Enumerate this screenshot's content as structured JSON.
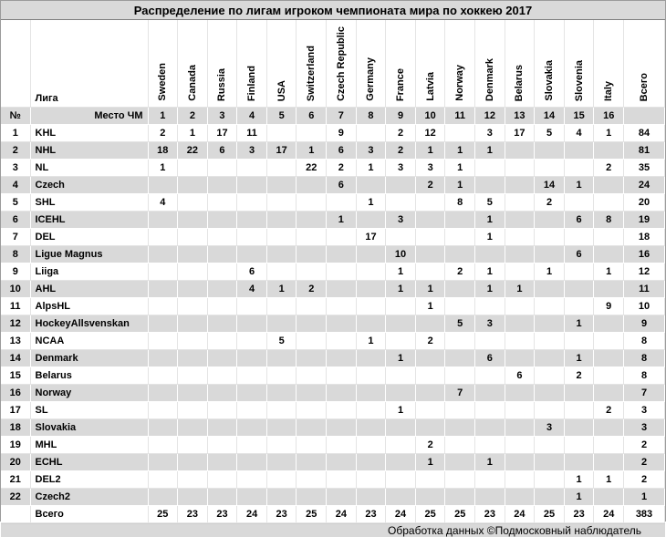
{
  "title": "Распределение по лигам игроком чемпионата мира по хоккею 2017",
  "header": {
    "num_label": "№",
    "league_label": "Лига",
    "place_label": "Место ЧМ",
    "countries": [
      "Sweden",
      "Canada",
      "Russia",
      "Finland",
      "USA",
      "Switzerland",
      "Czech Republic",
      "Germany",
      "France",
      "Latvia",
      "Norway",
      "Denmark",
      "Belarus",
      "Slovakia",
      "Slovenia",
      "Italy"
    ],
    "total_label": "Всего",
    "places": [
      "1",
      "2",
      "3",
      "4",
      "5",
      "6",
      "7",
      "8",
      "9",
      "10",
      "11",
      "12",
      "13",
      "14",
      "15",
      "16"
    ]
  },
  "rows": [
    {
      "num": "1",
      "league": "KHL",
      "values": [
        "2",
        "1",
        "17",
        "11",
        "",
        "",
        "9",
        "",
        "2",
        "12",
        "",
        "3",
        "17",
        "5",
        "4",
        "1"
      ],
      "total": "84"
    },
    {
      "num": "2",
      "league": "NHL",
      "values": [
        "18",
        "22",
        "6",
        "3",
        "17",
        "1",
        "6",
        "3",
        "2",
        "1",
        "1",
        "1",
        "",
        "",
        "",
        ""
      ],
      "total": "81"
    },
    {
      "num": "3",
      "league": "NL",
      "values": [
        "1",
        "",
        "",
        "",
        "",
        "22",
        "2",
        "1",
        "3",
        "3",
        "1",
        "",
        "",
        "",
        "",
        "2"
      ],
      "total": "35"
    },
    {
      "num": "4",
      "league": "Czech",
      "values": [
        "",
        "",
        "",
        "",
        "",
        "",
        "6",
        "",
        "",
        "2",
        "1",
        "",
        "",
        "14",
        "1",
        ""
      ],
      "total": "24"
    },
    {
      "num": "5",
      "league": "SHL",
      "values": [
        "4",
        "",
        "",
        "",
        "",
        "",
        "",
        "1",
        "",
        "",
        "8",
        "5",
        "",
        "2",
        "",
        ""
      ],
      "total": "20"
    },
    {
      "num": "6",
      "league": "ICEHL",
      "values": [
        "",
        "",
        "",
        "",
        "",
        "",
        "1",
        "",
        "3",
        "",
        "",
        "1",
        "",
        "",
        "6",
        "8"
      ],
      "total": "19"
    },
    {
      "num": "7",
      "league": "DEL",
      "values": [
        "",
        "",
        "",
        "",
        "",
        "",
        "",
        "17",
        "",
        "",
        "",
        "1",
        "",
        "",
        "",
        ""
      ],
      "total": "18"
    },
    {
      "num": "8",
      "league": "Ligue Magnus",
      "values": [
        "",
        "",
        "",
        "",
        "",
        "",
        "",
        "",
        "10",
        "",
        "",
        "",
        "",
        "",
        "6",
        ""
      ],
      "total": "16"
    },
    {
      "num": "9",
      "league": "Liiga",
      "values": [
        "",
        "",
        "",
        "6",
        "",
        "",
        "",
        "",
        "1",
        "",
        "2",
        "1",
        "",
        "1",
        "",
        "1"
      ],
      "total": "12"
    },
    {
      "num": "10",
      "league": "AHL",
      "values": [
        "",
        "",
        "",
        "4",
        "1",
        "2",
        "",
        "",
        "1",
        "1",
        "",
        "1",
        "1",
        "",
        "",
        ""
      ],
      "total": "11"
    },
    {
      "num": "11",
      "league": "AlpsHL",
      "values": [
        "",
        "",
        "",
        "",
        "",
        "",
        "",
        "",
        "",
        "1",
        "",
        "",
        "",
        "",
        "",
        "9"
      ],
      "total": "10"
    },
    {
      "num": "12",
      "league": "HockeyAllsvenskan",
      "values": [
        "",
        "",
        "",
        "",
        "",
        "",
        "",
        "",
        "",
        "",
        "5",
        "3",
        "",
        "",
        "1",
        ""
      ],
      "total": "9"
    },
    {
      "num": "13",
      "league": "NCAA",
      "values": [
        "",
        "",
        "",
        "",
        "5",
        "",
        "",
        "1",
        "",
        "2",
        "",
        "",
        "",
        "",
        "",
        ""
      ],
      "total": "8"
    },
    {
      "num": "14",
      "league": "Denmark",
      "values": [
        "",
        "",
        "",
        "",
        "",
        "",
        "",
        "",
        "1",
        "",
        "",
        "6",
        "",
        "",
        "1",
        ""
      ],
      "total": "8"
    },
    {
      "num": "15",
      "league": "Belarus",
      "values": [
        "",
        "",
        "",
        "",
        "",
        "",
        "",
        "",
        "",
        "",
        "",
        "",
        "6",
        "",
        "2",
        ""
      ],
      "total": "8"
    },
    {
      "num": "16",
      "league": "Norway",
      "values": [
        "",
        "",
        "",
        "",
        "",
        "",
        "",
        "",
        "",
        "",
        "7",
        "",
        "",
        "",
        "",
        ""
      ],
      "total": "7"
    },
    {
      "num": "17",
      "league": "SL",
      "values": [
        "",
        "",
        "",
        "",
        "",
        "",
        "",
        "",
        "1",
        "",
        "",
        "",
        "",
        "",
        "",
        "2"
      ],
      "total": "3"
    },
    {
      "num": "18",
      "league": "Slovakia",
      "values": [
        "",
        "",
        "",
        "",
        "",
        "",
        "",
        "",
        "",
        "",
        "",
        "",
        "",
        "3",
        "",
        ""
      ],
      "total": "3"
    },
    {
      "num": "19",
      "league": "MHL",
      "values": [
        "",
        "",
        "",
        "",
        "",
        "",
        "",
        "",
        "",
        "2",
        "",
        "",
        "",
        "",
        "",
        ""
      ],
      "total": "2"
    },
    {
      "num": "20",
      "league": "ECHL",
      "values": [
        "",
        "",
        "",
        "",
        "",
        "",
        "",
        "",
        "",
        "1",
        "",
        "1",
        "",
        "",
        "",
        ""
      ],
      "total": "2"
    },
    {
      "num": "21",
      "league": "DEL2",
      "values": [
        "",
        "",
        "",
        "",
        "",
        "",
        "",
        "",
        "",
        "",
        "",
        "",
        "",
        "",
        "1",
        "1"
      ],
      "total": "2"
    },
    {
      "num": "22",
      "league": "Czech2",
      "values": [
        "",
        "",
        "",
        "",
        "",
        "",
        "",
        "",
        "",
        "",
        "",
        "",
        "",
        "",
        "1",
        ""
      ],
      "total": "1"
    }
  ],
  "totals_row": {
    "label": "Всего",
    "values": [
      "25",
      "23",
      "23",
      "24",
      "23",
      "25",
      "24",
      "23",
      "24",
      "25",
      "25",
      "23",
      "24",
      "25",
      "23",
      "24"
    ],
    "total": "383"
  },
  "footer": "Обработка данных ©Подмосковный наблюдатель",
  "colors": {
    "shaded_row": "#d9d9d9",
    "title_bar": "#d9d9d9",
    "grid_line": "#e4e4e4",
    "frame_border": "#9b9b9b",
    "text": "#000000"
  }
}
